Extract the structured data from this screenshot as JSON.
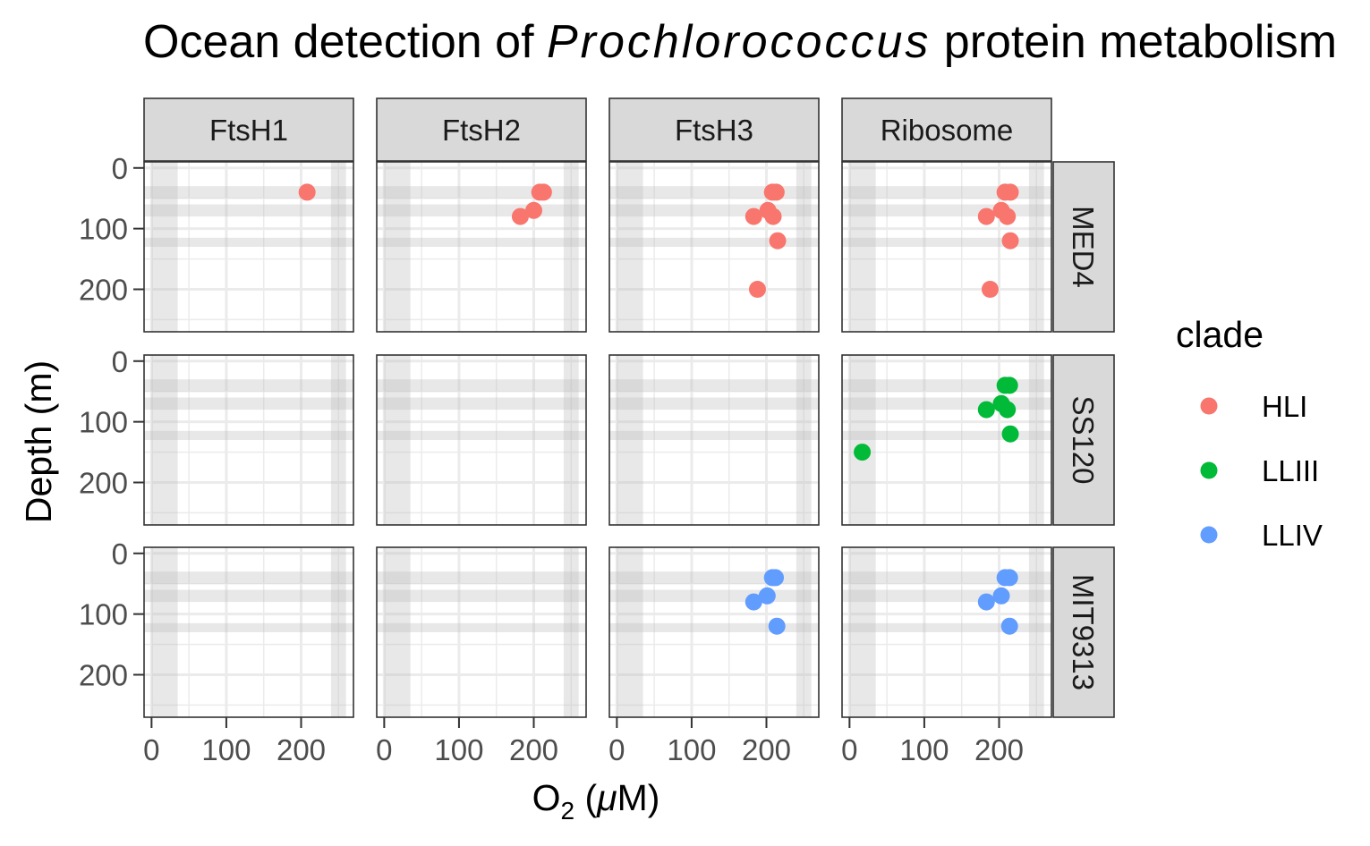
{
  "chart_data": {
    "type": "scatter",
    "title_parts": [
      "Ocean detection of ",
      "Prochlorococcus",
      " protein metabolism"
    ],
    "xlabel": {
      "base": "O",
      "sub": "2",
      "rest_pre": " (",
      "mu": "μ",
      "rest_post": "M)"
    },
    "ylabel": "Depth (m)",
    "x_ticks": [
      "0",
      "100",
      "200"
    ],
    "y_ticks": [
      "0",
      "100",
      "200"
    ],
    "xlim": [
      -10,
      270
    ],
    "ylim": [
      270,
      -10
    ],
    "y_reversed": true,
    "grid": true,
    "legend_position": "right",
    "legend_title": "clade",
    "column_facets": [
      "FtsH1",
      "FtsH2",
      "FtsH3",
      "Ribosome"
    ],
    "row_facets": [
      "MED4",
      "SS120",
      "MIT9313"
    ],
    "clades": [
      {
        "name": "HLI",
        "color": "#F8766D"
      },
      {
        "name": "LLIII",
        "color": "#00BA38"
      },
      {
        "name": "LLIV",
        "color": "#619CFF"
      }
    ],
    "shaded_x_ranges": [
      [
        0,
        35
      ],
      [
        240,
        260
      ]
    ],
    "shaded_y_ranges": [
      [
        30,
        50
      ],
      [
        60,
        80
      ],
      [
        115,
        130
      ]
    ],
    "panels": [
      {
        "col": "FtsH1",
        "row": "MED4",
        "clade": "HLI",
        "points": [
          [
            208,
            40
          ]
        ]
      },
      {
        "col": "FtsH2",
        "row": "MED4",
        "clade": "HLI",
        "points": [
          [
            208,
            40
          ],
          [
            213,
            40
          ],
          [
            200,
            70
          ],
          [
            182,
            80
          ]
        ]
      },
      {
        "col": "FtsH3",
        "row": "MED4",
        "clade": "HLI",
        "points": [
          [
            208,
            40
          ],
          [
            213,
            40
          ],
          [
            202,
            70
          ],
          [
            183,
            80
          ],
          [
            209,
            80
          ],
          [
            215,
            120
          ],
          [
            188,
            200
          ]
        ]
      },
      {
        "col": "Ribosome",
        "row": "MED4",
        "clade": "HLI",
        "points": [
          [
            208,
            40
          ],
          [
            215,
            40
          ],
          [
            203,
            70
          ],
          [
            183,
            80
          ],
          [
            211,
            80
          ],
          [
            215,
            120
          ],
          [
            188,
            200
          ]
        ]
      },
      {
        "col": "Ribosome",
        "row": "SS120",
        "clade": "LLIII",
        "points": [
          [
            208,
            40
          ],
          [
            214,
            40
          ],
          [
            203,
            70
          ],
          [
            183,
            80
          ],
          [
            211,
            80
          ],
          [
            215,
            120
          ],
          [
            17,
            150
          ]
        ]
      },
      {
        "col": "FtsH3",
        "row": "MIT9313",
        "clade": "LLIV",
        "points": [
          [
            208,
            40
          ],
          [
            212,
            40
          ],
          [
            201,
            70
          ],
          [
            183,
            80
          ],
          [
            214,
            120
          ]
        ]
      },
      {
        "col": "Ribosome",
        "row": "MIT9313",
        "clade": "LLIV",
        "points": [
          [
            208,
            40
          ],
          [
            214,
            40
          ],
          [
            203,
            70
          ],
          [
            183,
            80
          ],
          [
            214,
            120
          ]
        ]
      }
    ]
  }
}
